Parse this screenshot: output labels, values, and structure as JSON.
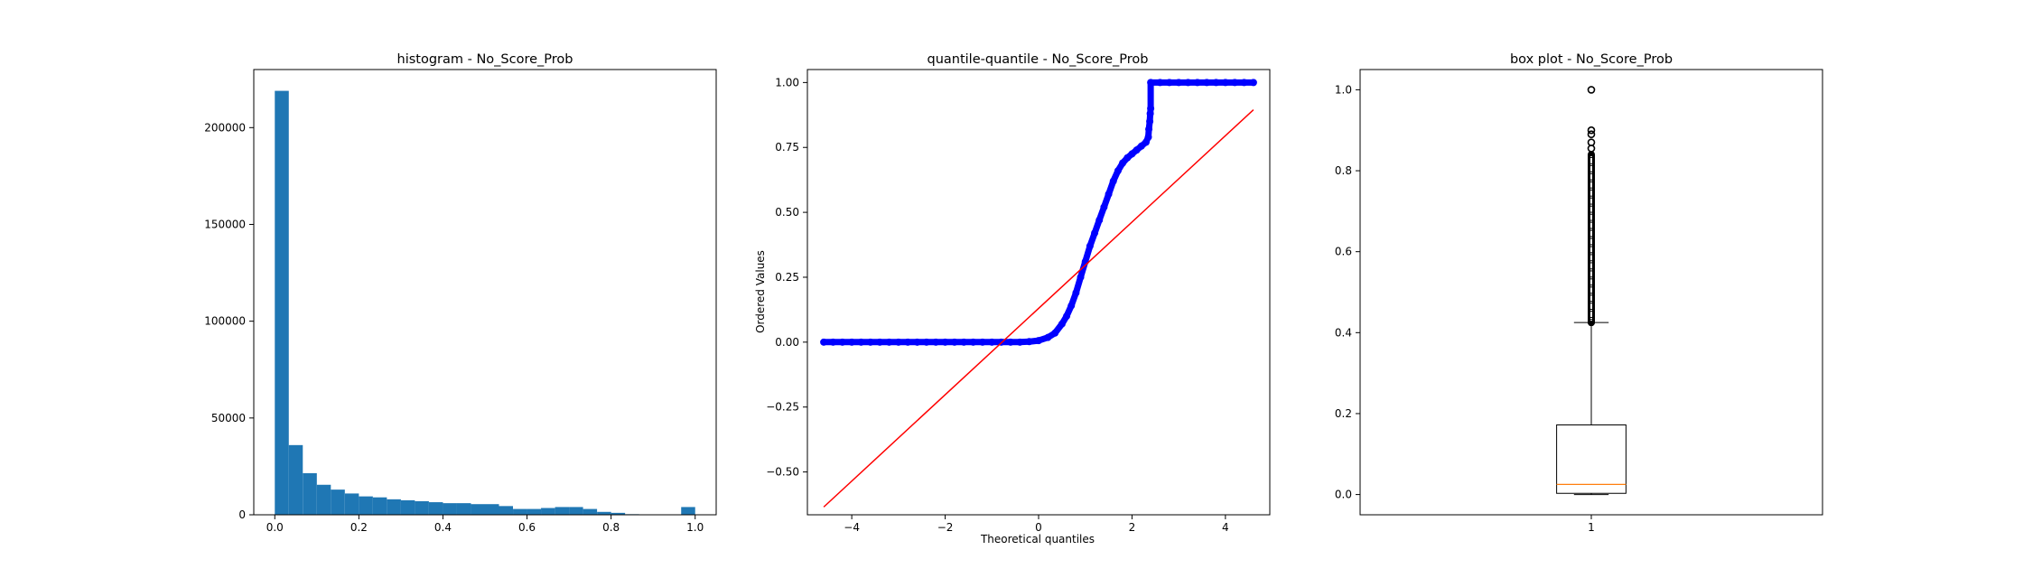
{
  "chart_data": [
    {
      "type": "bar",
      "title": "histogram - No_Score_Prob",
      "xlabel": "",
      "ylabel": "",
      "xlim": [
        -0.05,
        1.05
      ],
      "ylim": [
        0,
        230000
      ],
      "xticks": [
        0.0,
        0.2,
        0.4,
        0.6,
        0.8,
        1.0
      ],
      "xtick_labels": [
        "0.0",
        "0.2",
        "0.4",
        "0.6",
        "0.8",
        "1.0"
      ],
      "yticks": [
        0,
        50000,
        100000,
        150000,
        200000
      ],
      "ytick_labels": [
        "0",
        "50000",
        "100000",
        "150000",
        "200000"
      ],
      "bin_width": 0.0333,
      "bin_starts": [
        0.0,
        0.0333,
        0.0667,
        0.1,
        0.1333,
        0.1667,
        0.2,
        0.2333,
        0.2667,
        0.3,
        0.3333,
        0.3667,
        0.4,
        0.4333,
        0.4667,
        0.5,
        0.5333,
        0.5667,
        0.6,
        0.6333,
        0.6667,
        0.7,
        0.7333,
        0.7667,
        0.8,
        0.8333,
        0.8667,
        0.9,
        0.9333,
        0.9667
      ],
      "values": [
        219000,
        36000,
        21500,
        15500,
        13000,
        11000,
        9500,
        9000,
        8000,
        7500,
        7000,
        6500,
        6000,
        6000,
        5500,
        5500,
        4500,
        3000,
        3000,
        3500,
        4000,
        4000,
        3000,
        1500,
        1000,
        300,
        100,
        100,
        100,
        4000
      ],
      "color": "#1f77b4",
      "grid": false
    },
    {
      "type": "scatter",
      "title": "quantile-quantile - No_Score_Prob",
      "xlabel": "Theoretical quantiles",
      "ylabel": "Ordered Values",
      "xlim": [
        -4.95,
        4.95
      ],
      "ylim": [
        -0.665,
        1.05
      ],
      "xticks": [
        -4,
        -2,
        0,
        2,
        4
      ],
      "xtick_labels": [
        "−4",
        "−2",
        "0",
        "2",
        "4"
      ],
      "yticks": [
        -0.5,
        -0.25,
        0.0,
        0.25,
        0.5,
        0.75,
        1.0
      ],
      "ytick_labels": [
        "−0.50",
        "−0.25",
        "0.00",
        "0.25",
        "0.50",
        "0.75",
        "1.00"
      ],
      "points": [
        [
          -4.6,
          0.0
        ],
        [
          -4.4,
          0.0
        ],
        [
          -4.2,
          0.0
        ],
        [
          -4.0,
          0.0
        ],
        [
          -3.8,
          0.0
        ],
        [
          -3.6,
          0.0
        ],
        [
          -3.4,
          0.0
        ],
        [
          -3.2,
          0.0
        ],
        [
          -3.0,
          0.0
        ],
        [
          -2.8,
          0.0
        ],
        [
          -2.6,
          0.0
        ],
        [
          -2.4,
          0.0
        ],
        [
          -2.2,
          0.0
        ],
        [
          -2.0,
          0.0
        ],
        [
          -1.8,
          0.0
        ],
        [
          -1.6,
          0.0
        ],
        [
          -1.4,
          0.0
        ],
        [
          -1.2,
          0.0
        ],
        [
          -1.0,
          0.0
        ],
        [
          -0.8,
          0.0
        ],
        [
          -0.6,
          0.0
        ],
        [
          -0.4,
          0.0
        ],
        [
          -0.2,
          0.002
        ],
        [
          0.0,
          0.006
        ],
        [
          0.2,
          0.018
        ],
        [
          0.35,
          0.035
        ],
        [
          0.5,
          0.07
        ],
        [
          0.6,
          0.1
        ],
        [
          0.7,
          0.14
        ],
        [
          0.8,
          0.19
        ],
        [
          0.9,
          0.25
        ],
        [
          1.0,
          0.31
        ],
        [
          1.1,
          0.37
        ],
        [
          1.2,
          0.42
        ],
        [
          1.3,
          0.47
        ],
        [
          1.4,
          0.52
        ],
        [
          1.5,
          0.57
        ],
        [
          1.6,
          0.62
        ],
        [
          1.7,
          0.66
        ],
        [
          1.8,
          0.69
        ],
        [
          1.9,
          0.71
        ],
        [
          2.0,
          0.725
        ],
        [
          2.1,
          0.74
        ],
        [
          2.2,
          0.755
        ],
        [
          2.3,
          0.77
        ],
        [
          2.35,
          0.79
        ],
        [
          2.36,
          0.82
        ],
        [
          2.38,
          0.85
        ],
        [
          2.39,
          0.88
        ],
        [
          2.4,
          0.9
        ],
        [
          2.4,
          1.0
        ],
        [
          2.6,
          1.0
        ],
        [
          2.8,
          1.0
        ],
        [
          3.0,
          1.0
        ],
        [
          3.2,
          1.0
        ],
        [
          3.4,
          1.0
        ],
        [
          3.6,
          1.0
        ],
        [
          3.8,
          1.0
        ],
        [
          4.0,
          1.0
        ],
        [
          4.2,
          1.0
        ],
        [
          4.4,
          1.0
        ],
        [
          4.6,
          1.0
        ]
      ],
      "fit_line": [
        [
          -4.6,
          -0.635
        ],
        [
          4.6,
          0.895
        ]
      ],
      "point_color": "#0000ff",
      "line_color": "#ff0000",
      "grid": false
    },
    {
      "type": "box",
      "title": "box plot - No_Score_Prob",
      "xlabel": "",
      "ylabel": "",
      "xlim": [
        0.5,
        1.5
      ],
      "ylim": [
        -0.05,
        1.05
      ],
      "xticks": [
        1
      ],
      "xtick_labels": [
        "1"
      ],
      "yticks": [
        0.0,
        0.2,
        0.4,
        0.6,
        0.8,
        1.0
      ],
      "ytick_labels": [
        "0.0",
        "0.2",
        "0.4",
        "0.6",
        "0.8",
        "1.0"
      ],
      "whisker_low": 0.0,
      "q1": 0.003,
      "median": 0.025,
      "q3": 0.172,
      "whisker_high": 0.425,
      "outliers_range": [
        0.425,
        0.84
      ],
      "outliers_extra": [
        0.855,
        0.87,
        0.89,
        0.9,
        1.0
      ],
      "median_color": "#ff7f0e",
      "grid": false
    }
  ]
}
